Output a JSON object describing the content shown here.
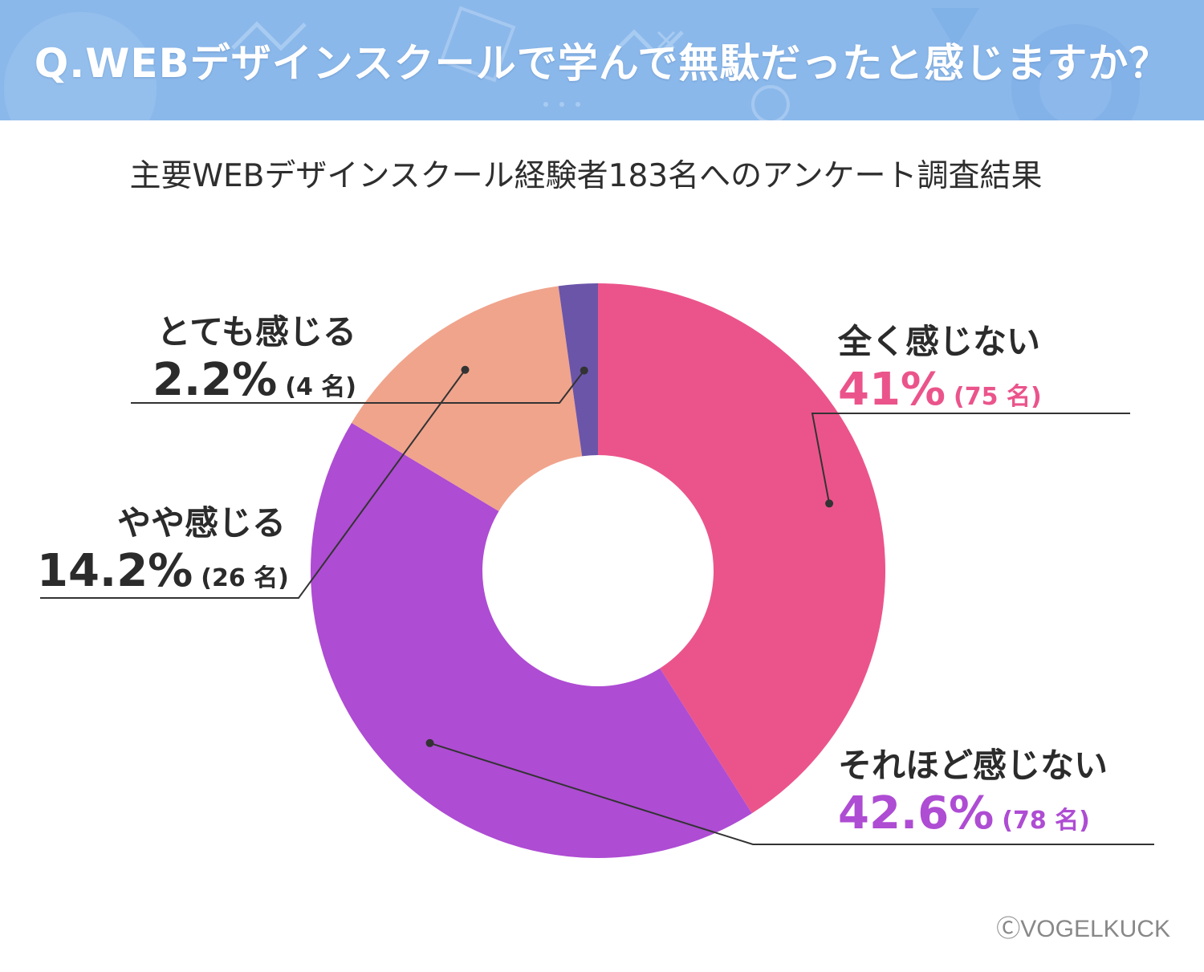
{
  "header": {
    "title": "Q.WEBデザインスクールで学んで無駄だったと感じますか？",
    "background_color": "#8bb8ea"
  },
  "subtitle": "主要WEBデザインスクール経験者183名へのアンケート調査結果",
  "credit": "ⒸVOGELKUCK",
  "chart_data": {
    "type": "pie",
    "donut": true,
    "start_angle_deg": 0,
    "direction": "clockwise",
    "slices": [
      {
        "label": "全く感じない",
        "value": 41,
        "value_text": "41%",
        "count_text": "(75 名)",
        "color": "#eb548b"
      },
      {
        "label": "それほど感じない",
        "value": 42.6,
        "value_text": "42.6%",
        "count_text": "(78 名)",
        "color": "#ae4cd3"
      },
      {
        "label": "やや感じる",
        "value": 14.2,
        "value_text": "14.2%",
        "count_text": "(26 名)",
        "color": "#f0a48c"
      },
      {
        "label": "とても感じる",
        "value": 2.2,
        "value_text": "2.2%",
        "count_text": "(4 名)",
        "color": "#6b55a9"
      }
    ]
  }
}
